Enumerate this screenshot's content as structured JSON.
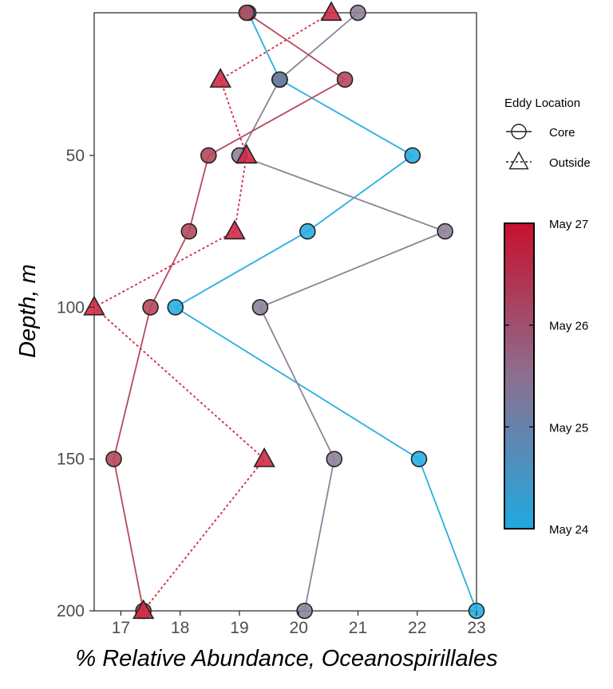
{
  "chart_data": {
    "type": "scatter",
    "title": "",
    "xlabel": "% Relative Abundance, Oceanospirillales",
    "ylabel": "Depth, m",
    "xlim": [
      16.55,
      23.0
    ],
    "ylim": [
      200,
      3
    ],
    "y_reversed": true,
    "xticks": [
      17,
      18,
      19,
      20,
      21,
      22,
      23
    ],
    "yticks": [
      50,
      100,
      150,
      200
    ],
    "grid": false,
    "shape_legend": {
      "title": "Eddy Location",
      "entries": [
        {
          "label": "Core",
          "shape": "circle",
          "line": "solid"
        },
        {
          "label": "Outside",
          "shape": "triangle",
          "line": "dotted"
        }
      ]
    },
    "color_legend": {
      "labels": [
        "May 27",
        "May 26",
        "May 25",
        "May 24"
      ],
      "low_color": "#1fa9e0",
      "mid_color": "#8c6f8f",
      "high_color": "#c8102e"
    },
    "series": [
      {
        "name": "May 24",
        "location": "Core",
        "color": "#29aee2",
        "points": [
          [
            19.15,
            3
          ],
          [
            19.68,
            25
          ],
          [
            21.92,
            50
          ],
          [
            20.15,
            75
          ],
          [
            17.92,
            100
          ],
          [
            22.03,
            150
          ],
          [
            23.0,
            200
          ]
        ]
      },
      {
        "name": "May 25",
        "location": "Core",
        "color": "#8e8299",
        "points": [
          [
            21.0,
            3
          ],
          [
            19.68,
            25
          ],
          [
            19.0,
            50
          ],
          [
            22.47,
            75
          ],
          [
            19.35,
            100
          ],
          [
            20.6,
            150
          ],
          [
            20.1,
            200
          ]
        ]
      },
      {
        "name": "May 26",
        "location": "Core",
        "color": "#b5495b",
        "points": [
          [
            19.12,
            3
          ],
          [
            20.78,
            25
          ],
          [
            18.48,
            50
          ],
          [
            18.15,
            75
          ],
          [
            17.5,
            100
          ],
          [
            16.88,
            150
          ],
          [
            17.38,
            200
          ]
        ]
      },
      {
        "name": "May 25.5",
        "location": "Core",
        "color": "#6a7fa1",
        "points": [
          [
            19.68,
            25
          ]
        ]
      },
      {
        "name": "May 27",
        "location": "Outside",
        "color": "#d02a45",
        "points": [
          [
            20.55,
            3
          ],
          [
            18.68,
            25
          ],
          [
            19.12,
            50
          ],
          [
            18.92,
            75
          ],
          [
            16.55,
            100
          ],
          [
            19.42,
            150
          ],
          [
            17.38,
            200
          ]
        ]
      }
    ]
  }
}
